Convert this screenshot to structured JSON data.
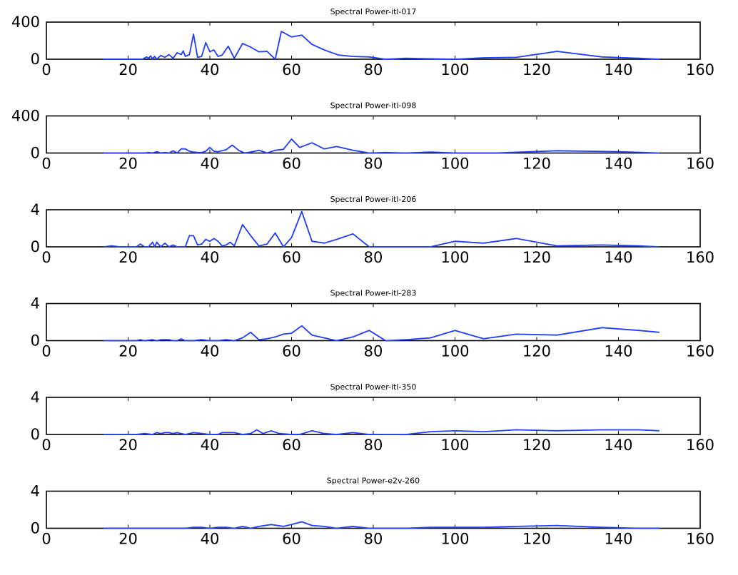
{
  "chart_data": [
    {
      "type": "line",
      "title": "Spectral Power-itl-017",
      "xlim": [
        0,
        160
      ],
      "ylim": [
        0,
        400
      ],
      "xticks": [
        0,
        20,
        40,
        60,
        80,
        100,
        120,
        140,
        160
      ],
      "yticks": [
        0,
        400
      ],
      "grid": false,
      "line_color": "#1f3cff",
      "x": [
        14,
        16,
        18,
        20,
        22,
        23.5,
        24.5,
        25,
        25.5,
        26,
        26.5,
        27,
        27.5,
        28,
        29,
        30,
        31,
        32,
        33,
        33.5,
        34,
        35,
        36,
        37,
        38,
        39,
        40,
        41,
        42,
        43,
        44.5,
        46,
        48,
        50,
        52,
        54,
        56,
        57.5,
        60,
        62.5,
        65,
        68,
        71.5,
        75,
        79,
        83,
        88,
        93,
        100,
        107,
        115,
        125,
        136,
        145,
        150
      ],
      "y": [
        0,
        0,
        0,
        0,
        0,
        0,
        25,
        10,
        35,
        5,
        30,
        0,
        20,
        40,
        20,
        50,
        10,
        70,
        50,
        90,
        30,
        50,
        270,
        20,
        30,
        180,
        80,
        100,
        30,
        45,
        140,
        10,
        170,
        130,
        80,
        85,
        0,
        300,
        240,
        260,
        160,
        100,
        45,
        30,
        25,
        0,
        10,
        5,
        0,
        15,
        20,
        85,
        25,
        10,
        0
      ]
    },
    {
      "type": "line",
      "title": "Spectral Power-itl-098",
      "xlim": [
        0,
        160
      ],
      "ylim": [
        0,
        400
      ],
      "xticks": [
        0,
        20,
        40,
        60,
        80,
        100,
        120,
        140,
        160
      ],
      "yticks": [
        0,
        400
      ],
      "grid": false,
      "line_color": "#1f3cff",
      "x": [
        14,
        16,
        18,
        20,
        22,
        24,
        25,
        26,
        27,
        28,
        29,
        30,
        31,
        32,
        33,
        34,
        35,
        36,
        37,
        38,
        39,
        40,
        41,
        42,
        43,
        44,
        45.5,
        47,
        48.5,
        50,
        52,
        54,
        56,
        58,
        60,
        62,
        65,
        68,
        71,
        75,
        79,
        83,
        88,
        94,
        100,
        110,
        125,
        140,
        150
      ],
      "y": [
        0,
        0,
        0,
        0,
        0,
        0,
        5,
        0,
        15,
        0,
        5,
        0,
        25,
        0,
        45,
        45,
        20,
        10,
        5,
        5,
        20,
        60,
        20,
        15,
        25,
        35,
        85,
        30,
        0,
        10,
        30,
        0,
        30,
        40,
        150,
        60,
        110,
        45,
        70,
        30,
        0,
        5,
        0,
        10,
        0,
        0,
        25,
        15,
        0
      ]
    },
    {
      "type": "line",
      "title": "Spectral Power-itl-206",
      "xlim": [
        0,
        160
      ],
      "ylim": [
        0,
        4
      ],
      "xticks": [
        0,
        20,
        40,
        60,
        80,
        100,
        120,
        140,
        160
      ],
      "yticks": [
        0,
        4
      ],
      "grid": false,
      "line_color": "#1f3cff",
      "x": [
        14,
        16,
        18,
        20,
        22,
        23,
        24,
        25,
        26,
        26.5,
        27,
        28,
        29,
        30,
        31,
        32,
        33,
        34,
        35,
        36,
        37,
        38,
        39,
        40,
        41,
        42,
        43,
        44,
        45,
        46,
        48,
        50,
        52,
        54,
        56,
        58,
        60,
        62.5,
        65,
        68,
        71,
        75,
        79,
        83,
        88,
        94,
        100,
        107,
        115,
        125,
        136,
        145,
        150
      ],
      "y": [
        0,
        0.1,
        0,
        0,
        0,
        0.3,
        0,
        0,
        0.5,
        0,
        0.5,
        0,
        0.4,
        0,
        0.2,
        0,
        0,
        0,
        1.2,
        1.2,
        0.2,
        0.3,
        0.8,
        0.6,
        0.9,
        0.6,
        0.1,
        0.2,
        0.5,
        0.1,
        2.4,
        1.2,
        0.1,
        0.3,
        1.5,
        0,
        1,
        3.8,
        0.6,
        0.4,
        0.8,
        1.4,
        0,
        0,
        0,
        0,
        0.6,
        0.4,
        0.9,
        0.1,
        0.2,
        0.1,
        0
      ]
    },
    {
      "type": "line",
      "title": "Spectral Power-itl-283",
      "xlim": [
        0,
        160
      ],
      "ylim": [
        0,
        4
      ],
      "xticks": [
        0,
        20,
        40,
        60,
        80,
        100,
        120,
        140,
        160
      ],
      "yticks": [
        0,
        4
      ],
      "grid": false,
      "line_color": "#1f3cff",
      "x": [
        14,
        16,
        18,
        20,
        22,
        23,
        24,
        26,
        27,
        28,
        30,
        31,
        32,
        33,
        34,
        36,
        38,
        40,
        42,
        44,
        46,
        48,
        50,
        52,
        54,
        56,
        58,
        60,
        62.5,
        65,
        68,
        71,
        75,
        79,
        83,
        88,
        94,
        100,
        107,
        115,
        125,
        136,
        145,
        150
      ],
      "y": [
        0,
        0,
        0,
        0,
        0,
        0.1,
        0,
        0.1,
        0,
        0.1,
        0.1,
        0,
        0,
        0.2,
        0,
        0,
        0.1,
        0,
        0,
        0.1,
        0,
        0.3,
        0.9,
        0.1,
        0.2,
        0.4,
        0.7,
        0.8,
        1.6,
        0.6,
        0.3,
        0,
        0.4,
        1.1,
        0,
        0.1,
        0.3,
        1.1,
        0.2,
        0.7,
        0.6,
        1.4,
        1.1,
        0.9
      ]
    },
    {
      "type": "line",
      "title": "Spectral Power-itl-350",
      "xlim": [
        0,
        160
      ],
      "ylim": [
        0,
        4
      ],
      "xticks": [
        0,
        20,
        40,
        60,
        80,
        100,
        120,
        140,
        160
      ],
      "yticks": [
        0,
        4
      ],
      "grid": false,
      "line_color": "#1f3cff",
      "x": [
        14,
        16,
        18,
        20,
        22,
        24,
        26,
        27,
        28,
        29,
        30,
        31,
        32,
        34,
        36,
        38,
        40,
        42,
        43,
        44,
        46,
        48,
        50,
        51.5,
        53,
        55,
        57,
        60,
        62,
        65,
        68,
        71,
        75,
        79,
        83,
        88,
        94,
        100,
        107,
        115,
        125,
        136,
        145,
        150
      ],
      "y": [
        0,
        0,
        0,
        0,
        0,
        0.1,
        0,
        0.2,
        0.1,
        0.2,
        0.2,
        0.1,
        0.2,
        0,
        0.2,
        0.1,
        0,
        0,
        0.2,
        0.2,
        0.2,
        0,
        0.1,
        0.5,
        0.1,
        0.4,
        0.1,
        0,
        0,
        0.4,
        0.1,
        0,
        0.2,
        0,
        0,
        0,
        0.3,
        0.4,
        0.3,
        0.5,
        0.4,
        0.5,
        0.5,
        0.4
      ]
    },
    {
      "type": "line",
      "title": "Spectral Power-e2v-260",
      "xlim": [
        0,
        160
      ],
      "ylim": [
        0,
        4
      ],
      "xticks": [
        0,
        20,
        40,
        60,
        80,
        100,
        120,
        140,
        160
      ],
      "yticks": [
        0,
        4
      ],
      "grid": false,
      "line_color": "#1f3cff",
      "x": [
        14,
        18,
        22,
        26,
        30,
        34,
        36,
        38,
        40,
        42,
        44,
        46,
        48,
        50,
        52,
        55,
        58,
        60,
        62.5,
        65,
        68,
        71,
        75,
        79,
        83,
        88,
        94,
        100,
        107,
        115,
        125,
        136,
        145,
        150
      ],
      "y": [
        0,
        0,
        0,
        0,
        0,
        0,
        0.1,
        0.1,
        0,
        0.1,
        0.1,
        0,
        0.2,
        0,
        0.2,
        0.4,
        0.2,
        0.4,
        0.7,
        0.3,
        0.2,
        0,
        0.2,
        0,
        0,
        0,
        0.1,
        0.1,
        0.1,
        0.2,
        0.3,
        0.1,
        0,
        0
      ]
    }
  ]
}
